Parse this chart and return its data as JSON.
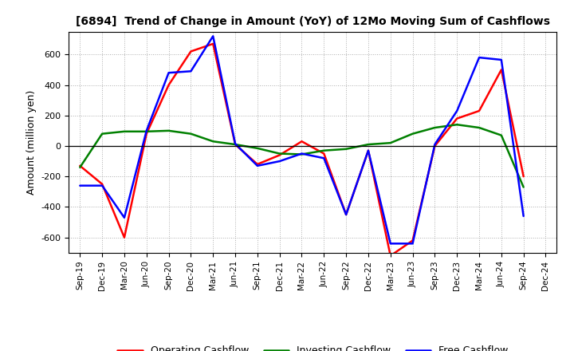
{
  "title": "[6894]  Trend of Change in Amount (YoY) of 12Mo Moving Sum of Cashflows",
  "ylabel": "Amount (million yen)",
  "x_labels": [
    "Sep-19",
    "Dec-19",
    "Mar-20",
    "Jun-20",
    "Sep-20",
    "Dec-20",
    "Mar-21",
    "Jun-21",
    "Sep-21",
    "Dec-21",
    "Mar-22",
    "Jun-22",
    "Sep-22",
    "Dec-22",
    "Mar-23",
    "Jun-23",
    "Sep-23",
    "Dec-23",
    "Mar-24",
    "Jun-24",
    "Sep-24",
    "Dec-24"
  ],
  "operating": [
    -130,
    -250,
    -600,
    80,
    400,
    620,
    670,
    10,
    -120,
    -60,
    30,
    -50,
    -450,
    -30,
    -720,
    -620,
    0,
    180,
    230,
    500,
    -200,
    null
  ],
  "investing": [
    -140,
    80,
    95,
    95,
    100,
    80,
    30,
    10,
    -15,
    -50,
    -55,
    -30,
    -20,
    10,
    20,
    80,
    120,
    140,
    120,
    70,
    -270,
    null
  ],
  "free": [
    -260,
    -260,
    -470,
    100,
    480,
    490,
    720,
    15,
    -130,
    -100,
    -50,
    -80,
    -450,
    -30,
    -640,
    -640,
    10,
    230,
    580,
    565,
    -460,
    null
  ],
  "ylim": [
    -700,
    750
  ],
  "yticks": [
    -600,
    -400,
    -200,
    0,
    200,
    400,
    600
  ],
  "operating_color": "#ff0000",
  "investing_color": "#008000",
  "free_color": "#0000ff",
  "background_color": "#ffffff",
  "grid_color": "#999999",
  "line_width": 1.8
}
